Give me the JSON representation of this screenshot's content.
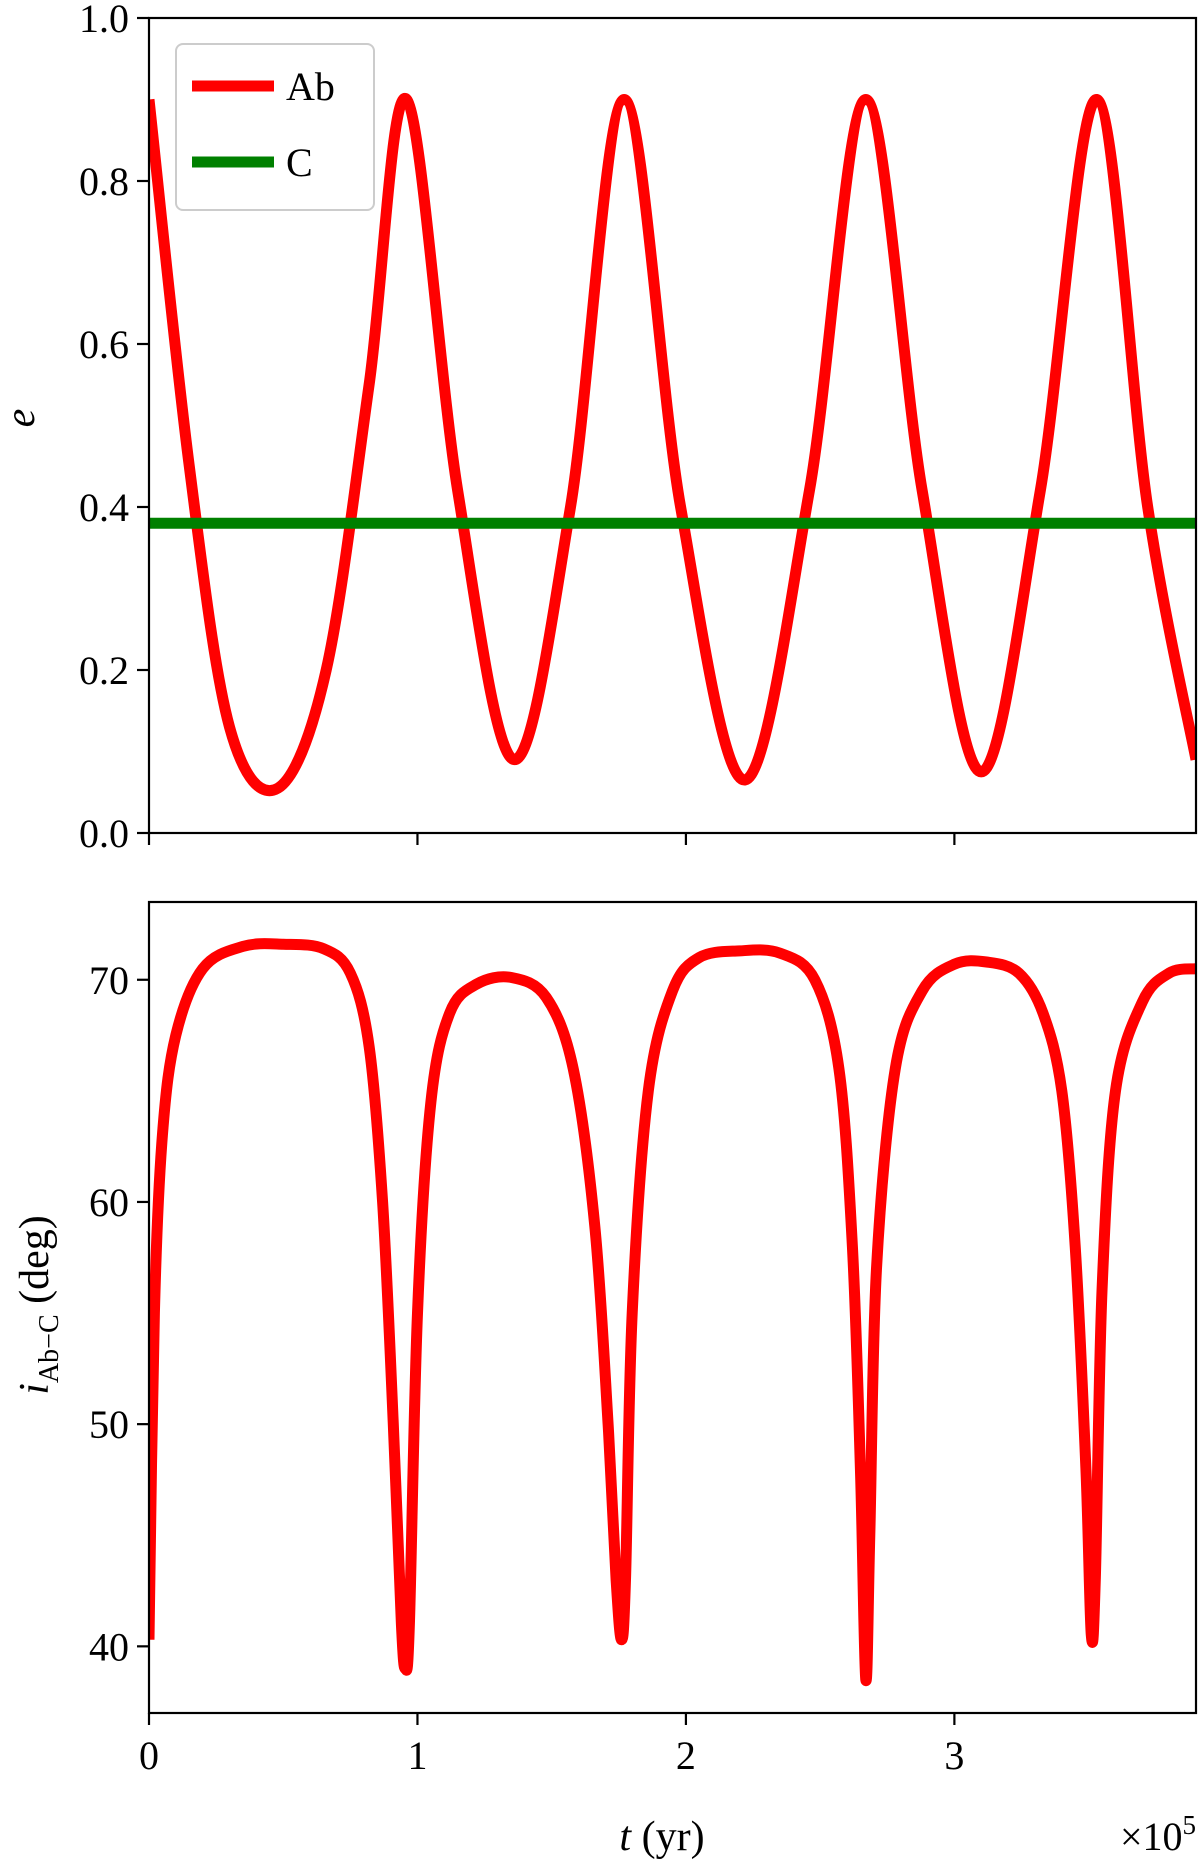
{
  "chart_data": [
    {
      "type": "line",
      "ylabel": "e",
      "xlim": [
        0,
        3.9
      ],
      "ylim": [
        0,
        1.0
      ],
      "xticks": [
        0,
        1,
        2,
        3
      ],
      "xtick_labels": [
        "",
        "",
        "",
        ""
      ],
      "yticks": [
        0.0,
        0.2,
        0.4,
        0.6,
        0.8,
        1.0
      ],
      "ytick_labels": [
        "0.0",
        "0.2",
        "0.4",
        "0.6",
        "0.8",
        "1.0"
      ],
      "legend": {
        "placement": "top-left",
        "entries": [
          "Ab",
          "C"
        ]
      },
      "grid": false,
      "series": [
        {
          "name": "Ab",
          "color": "#ff0000",
          "x": [
            0,
            0.15,
            0.3,
            0.48,
            0.66,
            0.82,
            0.96,
            1.15,
            1.36,
            1.57,
            1.77,
            1.98,
            2.22,
            2.46,
            2.67,
            2.88,
            3.1,
            3.32,
            3.53,
            3.72,
            3.9
          ],
          "y": [
            0.9,
            0.45,
            0.13,
            0.055,
            0.2,
            0.55,
            0.9,
            0.42,
            0.09,
            0.4,
            0.9,
            0.4,
            0.065,
            0.42,
            0.9,
            0.42,
            0.075,
            0.42,
            0.9,
            0.4,
            0.09
          ]
        },
        {
          "name": "C",
          "color": "#008000",
          "x": [
            0,
            1,
            2,
            3,
            3.9
          ],
          "y": [
            0.38,
            0.38,
            0.38,
            0.38,
            0.38
          ]
        }
      ]
    },
    {
      "type": "line",
      "xlabel": "t (yr)",
      "ylabel": "i_Ab−C (deg)",
      "xlim": [
        0,
        3.9
      ],
      "ylim": [
        37,
        73.5
      ],
      "x_multiplier": "×10⁵",
      "xticks": [
        0,
        1,
        2,
        3
      ],
      "xtick_labels": [
        "0",
        "1",
        "2",
        "3"
      ],
      "yticks": [
        40,
        50,
        60,
        70
      ],
      "ytick_labels": [
        "40",
        "50",
        "60",
        "70"
      ],
      "grid": false,
      "series": [
        {
          "name": "Ab",
          "color": "#ff0000",
          "x": [
            0,
            0.02,
            0.05,
            0.1,
            0.2,
            0.35,
            0.5,
            0.65,
            0.75,
            0.82,
            0.87,
            0.91,
            0.94,
            0.955,
            0.97,
            1.0,
            1.05,
            1.12,
            1.22,
            1.35,
            1.48,
            1.58,
            1.66,
            1.71,
            1.74,
            1.76,
            1.775,
            1.8,
            1.86,
            1.95,
            2.05,
            2.2,
            2.35,
            2.48,
            2.57,
            2.62,
            2.65,
            2.67,
            2.685,
            2.71,
            2.78,
            2.88,
            3.0,
            3.12,
            3.24,
            3.33,
            3.4,
            3.45,
            3.49,
            3.51,
            3.525,
            3.55,
            3.6,
            3.7,
            3.8,
            3.9
          ],
          "y": [
            40.3,
            55,
            63,
            67.5,
            70.5,
            71.5,
            71.6,
            71.4,
            70.3,
            67,
            60,
            50,
            41,
            39,
            41,
            55,
            64.5,
            68.5,
            69.8,
            70.1,
            69.2,
            66,
            59,
            50,
            43,
            40.3,
            43,
            55,
            65,
            69.5,
            71,
            71.3,
            71.2,
            70,
            66,
            58,
            48,
            38.5,
            45,
            57,
            66,
            69.5,
            70.7,
            70.8,
            70.3,
            68.5,
            65,
            58,
            48,
            40.5,
            43,
            56,
            65,
            69,
            70.3,
            70.5
          ]
        }
      ]
    }
  ]
}
